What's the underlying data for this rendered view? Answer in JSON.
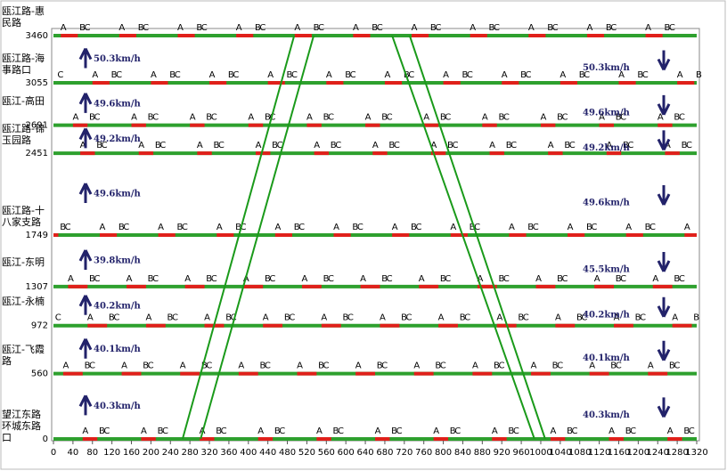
{
  "chart_data": {
    "type": "time-space",
    "xlim": [
      0,
      1320
    ],
    "xticks": [
      0,
      40,
      80,
      120,
      160,
      200,
      240,
      280,
      320,
      360,
      400,
      440,
      480,
      520,
      560,
      600,
      640,
      680,
      720,
      760,
      800,
      840,
      880,
      920,
      960,
      1000,
      1040,
      1080,
      1120,
      1160,
      1200,
      1240,
      1280,
      1320
    ],
    "ylim": [
      0,
      3460
    ],
    "cycle": 120,
    "phase_labels": [
      "A",
      "B",
      "C"
    ],
    "intersections": [
      {
        "name": "瓯江路-惠民路",
        "distance": 3460,
        "offset": 15,
        "red": 35
      },
      {
        "name": "瓯江路-海事路口",
        "distance": 3055,
        "offset": 80,
        "red": 35
      },
      {
        "name": "瓯江-高田",
        "distance": 2691,
        "offset": 40,
        "red": 30
      },
      {
        "name": "瓯江路-锦玉园路",
        "distance": 2451,
        "offset": 55,
        "red": 30
      },
      {
        "name": "瓯江路-十八家支路",
        "distance": 1749,
        "offset": 95,
        "red": 35
      },
      {
        "name": "瓯江-东明",
        "distance": 1307,
        "offset": 30,
        "red": 40
      },
      {
        "name": "瓯江-永楠",
        "distance": 972,
        "offset": 70,
        "red": 40
      },
      {
        "name": "瓯江-飞霞路",
        "distance": 560,
        "offset": 20,
        "red": 40
      },
      {
        "name": "望江东路环城东路口",
        "distance": 0,
        "offset": 60,
        "red": 30
      }
    ],
    "up_speeds": [
      "50.3km/h",
      "49.6km/h",
      "49.2km/h",
      "49.6km/h",
      "39.8km/h",
      "40.2km/h",
      "40.1km/h",
      "40.3km/h"
    ],
    "down_speeds": [
      "50.3km/h",
      "49.6km/h",
      "49.2km/h",
      "49.6km/h",
      "45.5km/h",
      "40.2km/h",
      "40.1km/h",
      "40.3km/h"
    ],
    "band_color": "#1a9a1a",
    "bands": [
      {
        "x": [
          265,
          494
        ],
        "y": [
          0,
          3460
        ]
      },
      {
        "x": [
          302,
          534
        ],
        "y": [
          0,
          3460
        ]
      },
      {
        "x": [
          695,
          987
        ],
        "y": [
          3460,
          0
        ]
      },
      {
        "x": [
          731,
          1009
        ],
        "y": [
          3460,
          0
        ]
      }
    ]
  }
}
